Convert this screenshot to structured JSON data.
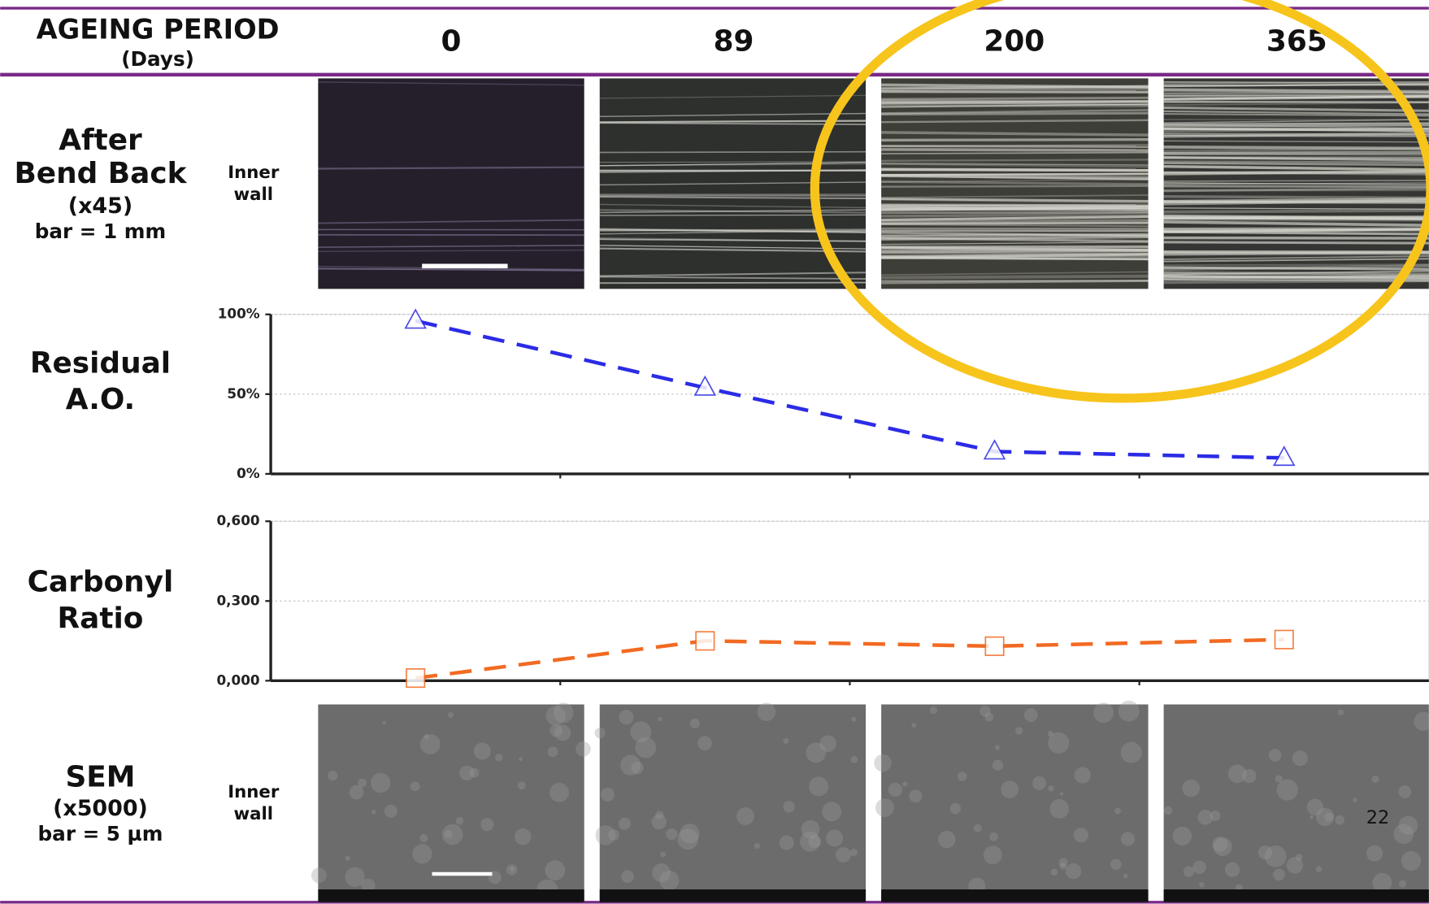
{
  "header": {
    "title": "AGEING PERIOD",
    "unit": "(Days)",
    "columns": [
      "0",
      "89",
      "200",
      "365"
    ]
  },
  "rows": [
    {
      "title": [
        "After",
        "Bend Back"
      ],
      "detail": [
        "(x45)",
        "bar = 1 mm"
      ],
      "side": [
        "Inner",
        "wall"
      ]
    },
    {
      "title": [
        "Residual",
        "A.O."
      ]
    },
    {
      "title": [
        "Carbonyl",
        "Ratio"
      ]
    },
    {
      "title": [
        "SEM"
      ],
      "detail": [
        "(x5000)",
        "bar = 5 µm"
      ],
      "side": [
        "Inner",
        "wall"
      ]
    }
  ],
  "chart_data": [
    {
      "type": "line",
      "categories": [
        null,
        null,
        null,
        null
      ],
      "series": [
        {
          "name": null,
          "color": "#2b2be6",
          "marker": "triangle",
          "values": [
            96,
            54,
            14,
            10
          ]
        }
      ],
      "ylim": [
        0,
        100
      ],
      "yticks": [
        {
          "value": 0,
          "label": "0%"
        },
        {
          "value": 50,
          "label": "50%"
        },
        {
          "value": 100,
          "label": "100%"
        }
      ],
      "grid": true
    },
    {
      "type": "line",
      "categories": [
        null,
        null,
        null,
        null
      ],
      "series": [
        {
          "name": null,
          "color": "#f26a22",
          "marker": "square",
          "values": [
            0.01,
            0.15,
            0.13,
            0.155
          ]
        }
      ],
      "ylim": [
        0,
        0.6
      ],
      "yticks": [
        {
          "value": 0,
          "label": "0,000"
        },
        {
          "value": 0.3,
          "label": "0,300"
        },
        {
          "value": 0.6,
          "label": "0,600"
        }
      ],
      "grid": true
    }
  ],
  "page_number": "22"
}
